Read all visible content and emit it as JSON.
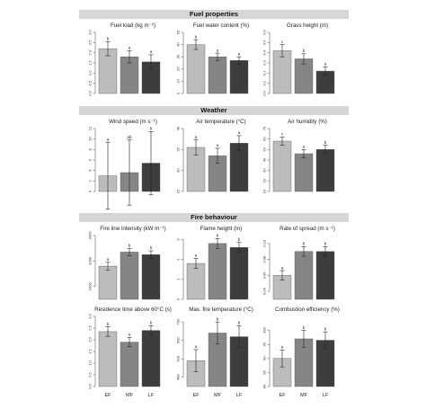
{
  "sections": [
    {
      "title": "Fuel properties"
    },
    {
      "title": "Weather"
    },
    {
      "title": "Fire behaviour"
    }
  ],
  "colors": {
    "EF": "#bcbcbc",
    "MF": "#858585",
    "LF": "#3d3d3d",
    "axis": "#666666",
    "header_bg": "#d6d6d6"
  },
  "chart_data": [
    {
      "type": "bar",
      "title": "Fuel load (kg m⁻²)",
      "categories": [
        "EF",
        "MF",
        "LF"
      ],
      "values": [
        2.2,
        1.8,
        1.55
      ],
      "errors": [
        0.35,
        0.3,
        0.35
      ],
      "letters": [
        "b",
        "a",
        "a"
      ],
      "ylim": [
        0,
        3
      ],
      "ticks": [
        0,
        0.5,
        1,
        1.5,
        2,
        2.5,
        3
      ],
      "tick_labels": [
        "0.0",
        "0.5",
        "1.0",
        "1.5",
        "2.0",
        "2.5",
        "3.0"
      ],
      "show_x_labels": false
    },
    {
      "type": "bar",
      "title": "Fuel water content (%)",
      "categories": [
        "EF",
        "MF",
        "LF"
      ],
      "values": [
        40,
        30,
        27
      ],
      "errors": [
        4,
        3,
        3
      ],
      "letters": [
        "b",
        "a",
        "a"
      ],
      "ylim": [
        0,
        50
      ],
      "ticks": [
        0,
        10,
        20,
        30,
        40,
        50
      ],
      "tick_labels": [
        "0",
        "10",
        "20",
        "30",
        "40",
        "50"
      ],
      "show_x_labels": false
    },
    {
      "type": "bar",
      "title": "Grass height (m)",
      "categories": [
        "EF",
        "MF",
        "LF"
      ],
      "values": [
        0.42,
        0.34,
        0.22
      ],
      "errors": [
        0.06,
        0.05,
        0.04
      ],
      "letters": [
        "c",
        "b",
        "a"
      ],
      "ylim": [
        0,
        0.6
      ],
      "ticks": [
        0,
        0.1,
        0.2,
        0.3,
        0.4,
        0.5,
        0.6
      ],
      "tick_labels": [
        "0.0",
        "0.1",
        "0.2",
        "0.3",
        "0.4",
        "0.5",
        "0.6"
      ],
      "show_x_labels": false
    },
    {
      "type": "bar",
      "title": "Wind speed (m s⁻¹)",
      "categories": [
        "EF",
        "MF",
        "LF"
      ],
      "values": [
        3.0,
        3.6,
        5.4
      ],
      "errors": [
        6.4,
        6.2,
        6.0
      ],
      "letters": [
        "a",
        "ab",
        "b"
      ],
      "ylim": [
        0,
        12
      ],
      "ticks": [
        0,
        2,
        4,
        6,
        8,
        10,
        12
      ],
      "tick_labels": [
        "0",
        "2",
        "4",
        "6",
        "8",
        "10",
        "12"
      ],
      "show_x_labels": false
    },
    {
      "type": "bar",
      "title": "Air temperature (°C)",
      "categories": [
        "EF",
        "MF",
        "LF"
      ],
      "values": [
        35.5,
        33.5,
        36.5
      ],
      "errors": [
        1.8,
        1.8,
        1.8
      ],
      "letters": [
        "a",
        "a",
        "a"
      ],
      "ylim": [
        25,
        40
      ],
      "ticks": [
        25,
        30,
        35,
        40
      ],
      "tick_labels": [
        "25",
        "30",
        "35",
        "40"
      ],
      "show_x_labels": false
    },
    {
      "type": "bar",
      "title": "Air humidity (%)",
      "categories": [
        "EF",
        "MF",
        "LF"
      ],
      "values": [
        58,
        46,
        50
      ],
      "errors": [
        4,
        4,
        4
      ],
      "letters": [
        "c",
        "a",
        "b"
      ],
      "ylim": [
        10,
        70
      ],
      "ticks": [
        10,
        20,
        30,
        40,
        50,
        60,
        70
      ],
      "tick_labels": [
        "10",
        "20",
        "30",
        "40",
        "50",
        "60",
        "70"
      ],
      "show_x_labels": false
    },
    {
      "type": "bar",
      "title": "Fire line intensity (kW m⁻¹)",
      "categories": [
        "EF",
        "MF",
        "LF"
      ],
      "values": [
        1800,
        2350,
        2250
      ],
      "errors": [
        150,
        150,
        150
      ],
      "letters": [
        "a",
        "b",
        "b"
      ],
      "ylim": [
        500,
        3000
      ],
      "ticks": [
        1000,
        2000,
        3000
      ],
      "tick_labels": [
        "1000",
        "2000",
        "3000"
      ],
      "show_x_labels": false
    },
    {
      "type": "bar",
      "title": "Flame height (m)",
      "categories": [
        "EF",
        "MF",
        "LF"
      ],
      "values": [
        1.8,
        2.8,
        2.6
      ],
      "errors": [
        0.25,
        0.25,
        0.25
      ],
      "letters": [
        "a",
        "b",
        "b"
      ],
      "ylim": [
        0,
        3.2
      ],
      "ticks": [
        0,
        1,
        2,
        3
      ],
      "tick_labels": [
        "0",
        "1",
        "2",
        "3"
      ],
      "show_x_labels": false
    },
    {
      "type": "bar",
      "title": "Rate of spread (m s⁻¹)",
      "categories": [
        "EF",
        "MF",
        "LF"
      ],
      "values": [
        0.06,
        0.09,
        0.09
      ],
      "errors": [
        0.006,
        0.006,
        0.006
      ],
      "letters": [
        "a",
        "b",
        "b"
      ],
      "ylim": [
        0.03,
        0.11
      ],
      "ticks": [
        0.04,
        0.06,
        0.08,
        0.1
      ],
      "tick_labels": [
        "0.04",
        "0.06",
        "0.08",
        "0.10"
      ],
      "show_x_labels": false
    },
    {
      "type": "bar",
      "title": "Residence time above 60°C (s)",
      "categories": [
        "EF",
        "MF",
        "LF"
      ],
      "values": [
        2.35,
        1.9,
        2.4
      ],
      "errors": [
        0.2,
        0.2,
        0.2
      ],
      "letters": [
        "b",
        "a",
        "b"
      ],
      "ylim": [
        0,
        3
      ],
      "ticks": [
        0,
        0.5,
        1,
        1.5,
        2,
        2.5,
        3
      ],
      "tick_labels": [
        "0.0",
        "0.5",
        "1.0",
        "1.5",
        "2.0",
        "2.5",
        "3.0"
      ],
      "show_x_labels": true
    },
    {
      "type": "bar",
      "title": "Max. fire temperature (°C)",
      "categories": [
        "EF",
        "MF",
        "LF"
      ],
      "values": [
        490,
        640,
        620
      ],
      "errors": [
        60,
        60,
        60
      ],
      "letters": [
        "a",
        "b",
        "b"
      ],
      "ylim": [
        350,
        730
      ],
      "ticks": [
        400,
        500,
        600,
        700
      ],
      "tick_labels": [
        "400",
        "500",
        "600",
        "700"
      ],
      "show_x_labels": true
    },
    {
      "type": "bar",
      "title": "Combustion efficiency (%)",
      "categories": [
        "EF",
        "MF",
        "LF"
      ],
      "values": [
        90,
        97,
        96.5
      ],
      "errors": [
        3,
        3,
        3
      ],
      "letters": [
        "a",
        "b",
        "b"
      ],
      "ylim": [
        80,
        105
      ],
      "ticks": [
        80,
        85,
        90,
        95,
        100
      ],
      "tick_labels": [
        "80",
        "85",
        "90",
        "95",
        "100"
      ],
      "show_x_labels": true
    }
  ]
}
